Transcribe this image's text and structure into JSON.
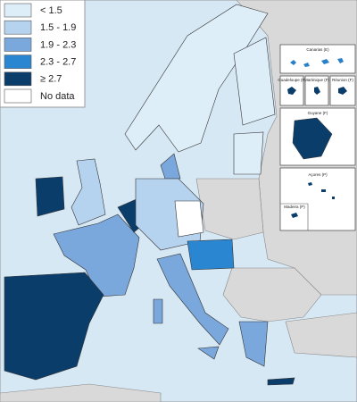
{
  "legend": [
    {
      "label": "< 1.5",
      "color": "#deeef9"
    },
    {
      "label": "1.5 - 1.9",
      "color": "#b5d2ee"
    },
    {
      "label": "1.9 - 2.3",
      "color": "#7aa8dc"
    },
    {
      "label": "2.3 - 2.7",
      "color": "#2a86d0"
    },
    {
      "label": "≥ 2.7",
      "color": "#0b3d6b"
    },
    {
      "label": "No data",
      "color": "#ffffff"
    }
  ],
  "insets": [
    "Canarias (E)",
    "Guadeloupe (F)",
    "Martinique (F)",
    "Réunion (F)",
    "Guyane (F)",
    "Açores (P)",
    "Madeira (P)"
  ]
}
